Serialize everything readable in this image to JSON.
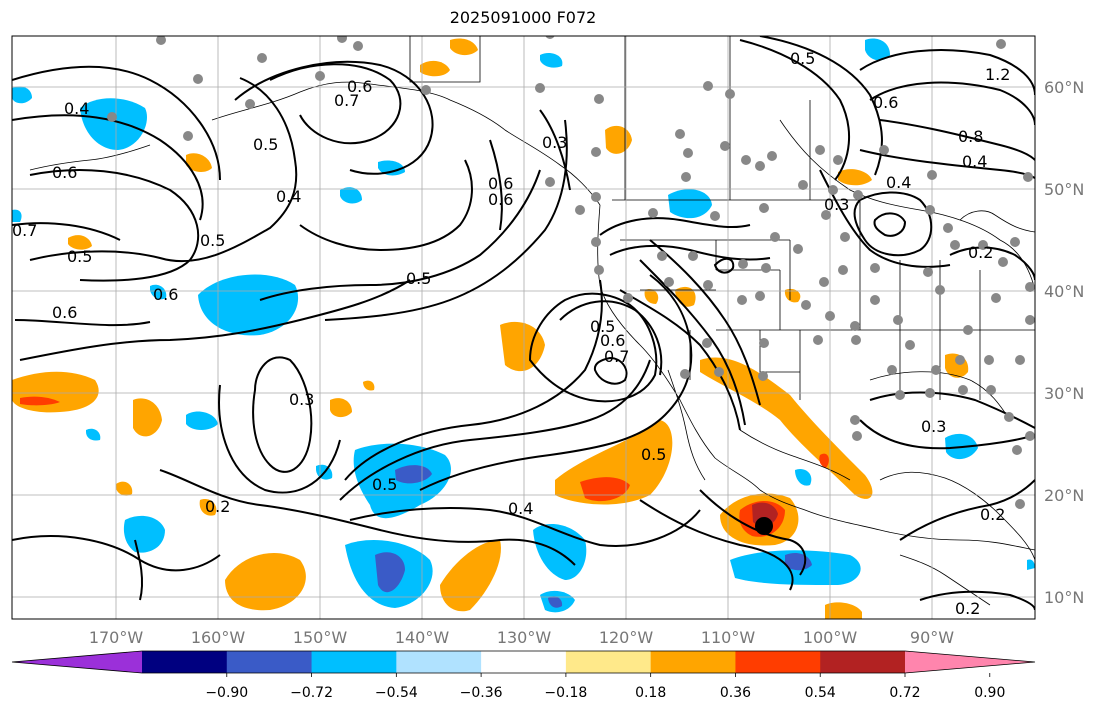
{
  "title": "2025091000 F072",
  "map": {
    "lon_labels": [
      "170°W",
      "160°W",
      "150°W",
      "140°W",
      "130°W",
      "120°W",
      "110°W",
      "100°W",
      "90°W"
    ],
    "lat_labels": [
      "60°N",
      "50°N",
      "40°N",
      "30°N",
      "20°N",
      "10°N"
    ],
    "contour_labels": [
      "0.4",
      "0.6",
      "0.7",
      "0.5",
      "0.6",
      "0.6",
      "0.7",
      "0.5",
      "0.4",
      "0.5",
      "0.5",
      "0.6",
      "0.6",
      "0.5",
      "0.3",
      "0.5",
      "0.4",
      "0.2",
      "0.5",
      "0.6",
      "0.7",
      "0.3",
      "0.6",
      "0.3",
      "0.4",
      "0.5",
      "0.6",
      "0.8",
      "0.4",
      "1.2",
      "0.3",
      "0.2",
      "0.2",
      "0.2"
    ],
    "storm_marker": "black dot near 17°N 107°W"
  },
  "colorbar": {
    "ticks": [
      "−0.90",
      "−0.72",
      "−0.54",
      "−0.36",
      "−0.18",
      "0.18",
      "0.36",
      "0.54",
      "0.72",
      "0.90"
    ],
    "colors": [
      "#9b30d9",
      "#000080",
      "#3a5bc7",
      "#00bfff",
      "#b0e2ff",
      "#ffffff",
      "#ffe98a",
      "#ffa500",
      "#ff3d00",
      "#b22222",
      "#ff85ad"
    ]
  }
}
